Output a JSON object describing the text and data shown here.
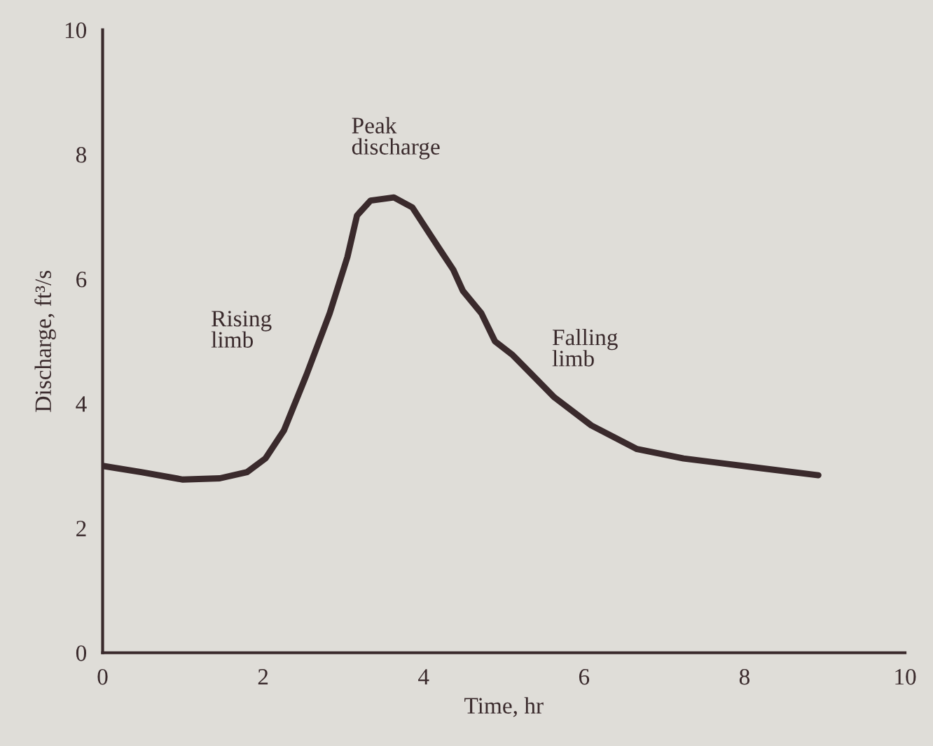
{
  "chart_data": {
    "type": "line",
    "xlabel": "Time, hr",
    "ylabel": "Discharge, ft³/s",
    "x": [
      0,
      0.48,
      1.0,
      1.46,
      1.8,
      2.03,
      2.26,
      2.54,
      2.83,
      3.05,
      3.17,
      3.34,
      3.63,
      3.86,
      4.2,
      4.37,
      4.49,
      4.72,
      4.89,
      5.11,
      5.63,
      6.09,
      6.66,
      7.24,
      8.1,
      8.92
    ],
    "series": [
      {
        "color": "#3a2a2c",
        "values": [
          3.0,
          2.9,
          2.78,
          2.8,
          2.9,
          3.12,
          3.57,
          4.46,
          5.45,
          6.35,
          7.02,
          7.26,
          7.31,
          7.15,
          6.48,
          6.15,
          5.81,
          5.45,
          5.0,
          4.78,
          4.1,
          3.65,
          3.27,
          3.12,
          2.98,
          2.85
        ]
      }
    ],
    "xlim": [
      0,
      10
    ],
    "ylim": [
      0,
      10
    ],
    "xticks": [
      0,
      2,
      4,
      6,
      8,
      10
    ],
    "yticks": [
      0,
      2,
      4,
      6,
      8,
      10
    ],
    "grid": false,
    "legend": false,
    "marker": "none",
    "line_style": "solid",
    "annotations": [
      "Peak discharge",
      "Rising limb",
      "Falling limb"
    ]
  }
}
